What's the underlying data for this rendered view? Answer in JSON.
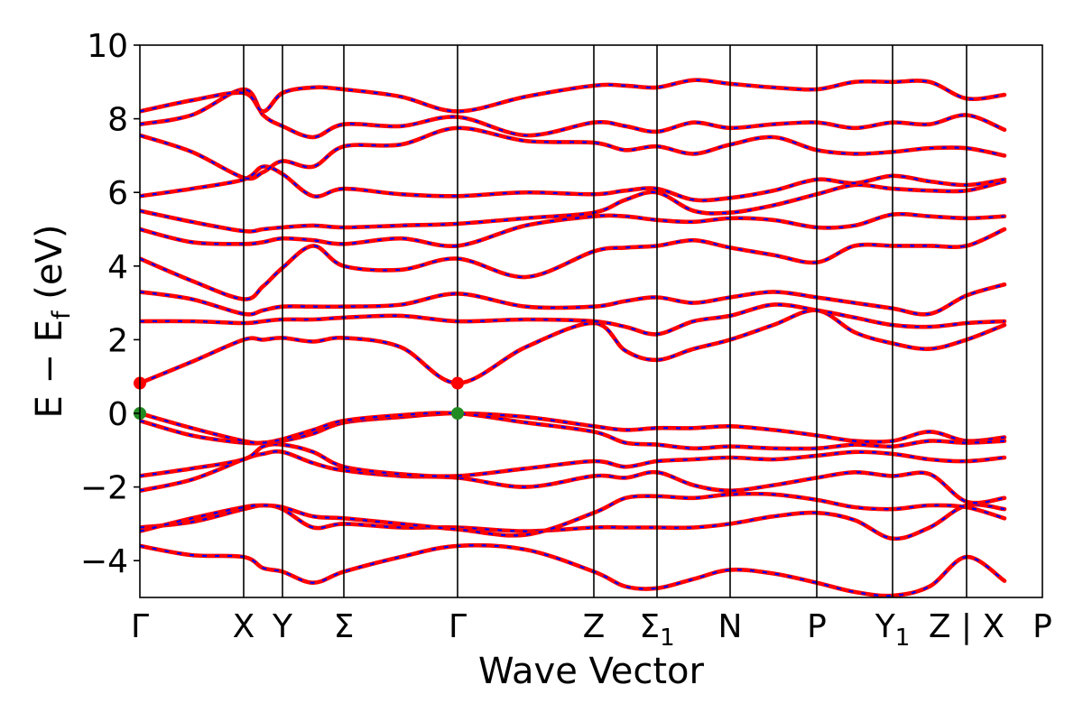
{
  "chart_data": {
    "type": "line",
    "title": "",
    "xlabel": "Wave Vector",
    "ylabel": "E − E_f (eV)",
    "ylabel_parts": {
      "main": "E − E",
      "sub": "f",
      "unit": " (eV)"
    },
    "ylim": [
      -5,
      10
    ],
    "yticks": [
      -4,
      -2,
      0,
      2,
      4,
      6,
      8,
      10
    ],
    "ytick_labels": [
      "−4",
      "−2",
      "0",
      "2",
      "4",
      "6",
      "8",
      "10"
    ],
    "xlim": [
      0,
      1
    ],
    "kpoints": [
      {
        "label": "Γ",
        "sub": "",
        "x": 0.0
      },
      {
        "label": "X",
        "sub": "",
        "x": 0.115
      },
      {
        "label": "Y",
        "sub": "",
        "x": 0.158
      },
      {
        "label": "Σ",
        "sub": "",
        "x": 0.226
      },
      {
        "label": "Γ",
        "sub": "",
        "x": 0.352
      },
      {
        "label": "Z",
        "sub": "",
        "x": 0.503
      },
      {
        "label": "Σ",
        "sub": "1",
        "x": 0.573
      },
      {
        "label": "N",
        "sub": "",
        "x": 0.654
      },
      {
        "label": "P",
        "sub": "",
        "x": 0.75
      },
      {
        "label": "Y",
        "sub": "1",
        "x": 0.834
      },
      {
        "label": "Z | X",
        "sub": "",
        "x": 0.916
      },
      {
        "label": "P",
        "sub": "",
        "x": 1.0
      }
    ],
    "series_style": [
      {
        "color": "#ff0000",
        "style": "solid"
      },
      {
        "color": "#0000ff",
        "style": "dashed"
      }
    ],
    "band_edges": {
      "cbm": [
        {
          "x": 0.0,
          "y": 0.82
        },
        {
          "x": 0.352,
          "y": 0.82
        }
      ],
      "vbm": [
        {
          "x": 0.0,
          "y": 0.0
        },
        {
          "x": 0.352,
          "y": 0.0
        }
      ],
      "cbm_color": "#ff0000",
      "vbm_color": "#228b22"
    },
    "bands": [
      [
        -3.6,
        -3.85,
        -3.9,
        -4.2,
        -4.3,
        -4.6,
        -4.3,
        -3.9,
        -3.6,
        -3.7,
        -4.3,
        -4.7,
        -4.75,
        -4.5,
        -4.25,
        -4.35,
        -4.6,
        -4.85,
        -4.95,
        -4.7,
        -3.9,
        -4.55
      ],
      [
        -3.1,
        -2.95,
        -2.6,
        -2.5,
        -2.6,
        -3.1,
        -3.0,
        -3.1,
        -3.1,
        -3.2,
        -3.1,
        -3.1,
        -3.1,
        -3.1,
        -3.0,
        -2.8,
        -2.7,
        -2.9,
        -3.4,
        -3.1,
        -2.5,
        -2.6
      ],
      [
        -3.2,
        -2.85,
        -2.55,
        -2.5,
        -2.55,
        -2.8,
        -2.85,
        -3.0,
        -3.15,
        -3.3,
        -2.7,
        -2.3,
        -2.25,
        -2.3,
        -2.2,
        -2.2,
        -2.35,
        -2.55,
        -2.6,
        -2.5,
        -2.55,
        -2.85
      ],
      [
        -2.1,
        -1.8,
        -1.25,
        -1.1,
        -1.05,
        -1.35,
        -1.55,
        -1.7,
        -1.75,
        -2.0,
        -1.7,
        -1.75,
        -1.6,
        -1.95,
        -2.1,
        -1.95,
        -1.75,
        -1.6,
        -1.7,
        -1.65,
        -2.4,
        -2.3
      ],
      [
        -1.7,
        -1.5,
        -1.25,
        -0.9,
        -0.85,
        -1.05,
        -1.45,
        -1.65,
        -1.7,
        -1.5,
        -1.3,
        -1.45,
        -1.3,
        -1.25,
        -1.2,
        -1.25,
        -1.15,
        -1.05,
        -1.1,
        -1.25,
        -1.3,
        -1.2
      ],
      [
        -0.2,
        -0.6,
        -0.8,
        -0.8,
        -0.75,
        -0.55,
        -0.25,
        -0.1,
        0.0,
        -0.1,
        -0.35,
        -0.45,
        -0.4,
        -0.4,
        -0.35,
        -0.45,
        -0.6,
        -0.75,
        -0.75,
        -0.5,
        -0.75,
        -0.65
      ],
      [
        0.0,
        -0.4,
        -0.75,
        -0.8,
        -0.7,
        -0.45,
        -0.2,
        -0.05,
        0.0,
        -0.25,
        -0.5,
        -0.8,
        -0.85,
        -0.95,
        -0.9,
        -0.95,
        -0.95,
        -0.85,
        -0.9,
        -0.75,
        -0.8,
        -0.75
      ],
      [
        0.82,
        1.4,
        2.0,
        2.0,
        2.05,
        1.95,
        2.05,
        1.8,
        0.82,
        1.8,
        2.45,
        1.7,
        1.45,
        1.75,
        2.0,
        2.4,
        2.8,
        2.2,
        1.9,
        1.75,
        2.0,
        2.4
      ],
      [
        2.5,
        2.5,
        2.45,
        2.5,
        2.55,
        2.55,
        2.6,
        2.65,
        2.5,
        2.55,
        2.5,
        2.35,
        2.15,
        2.5,
        2.65,
        2.95,
        2.8,
        2.6,
        2.4,
        2.35,
        2.45,
        2.5
      ],
      [
        3.3,
        3.1,
        2.7,
        2.8,
        2.9,
        2.9,
        2.9,
        2.95,
        3.25,
        2.9,
        2.9,
        3.05,
        3.15,
        3.0,
        3.15,
        3.3,
        3.15,
        3.0,
        2.85,
        2.7,
        3.2,
        3.5
      ],
      [
        4.2,
        3.6,
        3.1,
        3.45,
        3.95,
        4.55,
        4.0,
        3.9,
        4.2,
        3.7,
        4.4,
        4.5,
        4.55,
        4.7,
        4.5,
        4.3,
        4.1,
        4.55,
        4.55,
        4.55,
        4.55,
        5.0
      ],
      [
        5.0,
        4.65,
        4.6,
        4.65,
        4.75,
        4.7,
        4.6,
        4.75,
        4.55,
        5.1,
        5.35,
        5.35,
        5.25,
        5.2,
        5.3,
        5.25,
        5.05,
        5.1,
        5.4,
        5.35,
        5.3,
        5.35
      ],
      [
        5.5,
        5.2,
        4.95,
        5.0,
        5.05,
        5.1,
        5.05,
        5.1,
        5.15,
        5.3,
        5.45,
        5.8,
        6.0,
        5.5,
        5.45,
        5.65,
        5.95,
        6.2,
        6.1,
        6.05,
        6.05,
        6.3
      ],
      [
        5.9,
        6.1,
        6.35,
        6.7,
        6.5,
        5.9,
        6.1,
        5.95,
        5.9,
        6.0,
        5.95,
        6.05,
        6.1,
        5.8,
        5.85,
        6.05,
        6.35,
        6.25,
        6.45,
        6.3,
        6.2,
        6.35
      ],
      [
        7.55,
        7.1,
        6.4,
        6.55,
        6.85,
        6.7,
        7.25,
        7.3,
        7.75,
        7.4,
        7.35,
        7.15,
        7.25,
        7.05,
        7.3,
        7.5,
        7.15,
        7.05,
        7.1,
        7.2,
        7.2,
        7.0
      ],
      [
        7.85,
        8.1,
        8.8,
        8.1,
        7.8,
        7.5,
        7.85,
        7.8,
        8.05,
        7.55,
        7.9,
        7.8,
        7.65,
        7.9,
        7.75,
        7.85,
        7.9,
        7.75,
        7.9,
        7.85,
        8.1,
        7.7
      ],
      [
        8.2,
        8.5,
        8.7,
        8.2,
        8.7,
        8.85,
        8.8,
        8.6,
        8.2,
        8.6,
        8.9,
        8.9,
        8.85,
        9.05,
        8.95,
        8.85,
        8.8,
        9.0,
        9.0,
        9.0,
        8.55,
        8.65
      ]
    ]
  }
}
